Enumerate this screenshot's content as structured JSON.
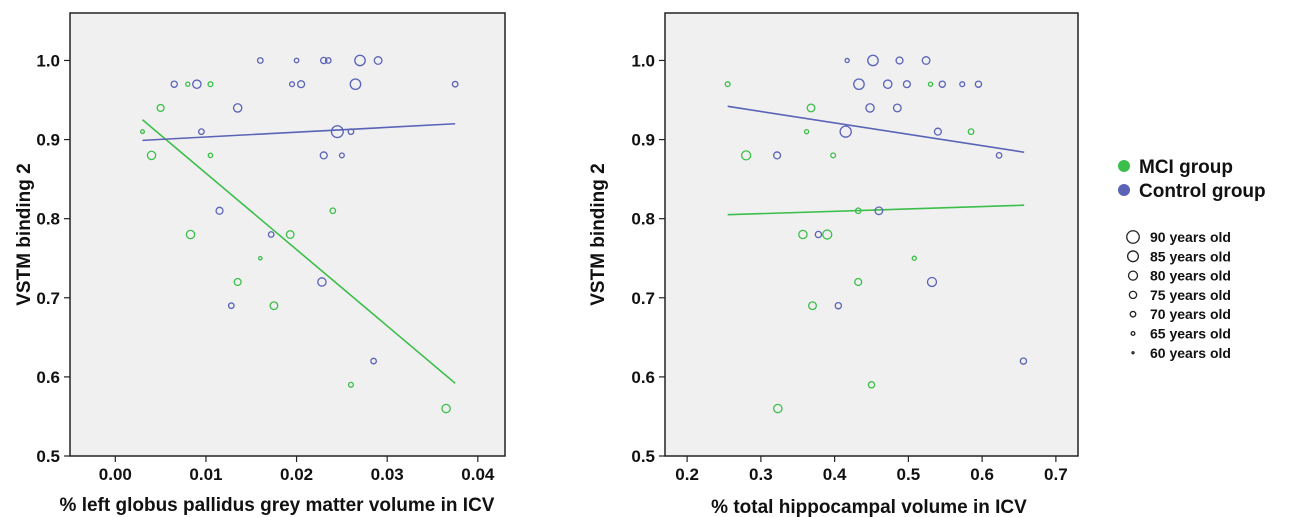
{
  "colors": {
    "mci": "#3cbf4a",
    "control": "#5a63b8",
    "panel_bg": "#f0f0f0"
  },
  "legend": {
    "groups": [
      {
        "label": "MCI group",
        "color": "#3cbf4a"
      },
      {
        "label": "Control group",
        "color": "#5a63b8"
      }
    ],
    "sizes": [
      {
        "label": "90 years old",
        "age": 90
      },
      {
        "label": "85 years old",
        "age": 85
      },
      {
        "label": "80 years old",
        "age": 80
      },
      {
        "label": "75 years old",
        "age": 75
      },
      {
        "label": "70 years old",
        "age": 70
      },
      {
        "label": "65 years old",
        "age": 65
      },
      {
        "label": "60 years old",
        "age": 60
      }
    ]
  },
  "chart_data": [
    {
      "type": "scatter",
      "xlabel": "% left globus pallidus grey matter volume in ICV",
      "ylabel": "VSTM binding 2",
      "xlim": [
        -0.005,
        0.043
      ],
      "ylim": [
        0.5,
        1.06
      ],
      "xticks": [
        "0.00",
        "0.01",
        "0.02",
        "0.03",
        "0.04"
      ],
      "yticks": [
        "0.5",
        "0.6",
        "0.7",
        "0.8",
        "0.9",
        "1.0"
      ],
      "series": [
        {
          "name": "MCI group",
          "points": [
            {
              "x": 0.003,
              "y": 0.91,
              "age": 65
            },
            {
              "x": 0.004,
              "y": 0.88,
              "age": 78
            },
            {
              "x": 0.005,
              "y": 0.94,
              "age": 74
            },
            {
              "x": 0.008,
              "y": 0.97,
              "age": 66
            },
            {
              "x": 0.0105,
              "y": 0.97,
              "age": 68
            },
            {
              "x": 0.0105,
              "y": 0.88,
              "age": 67
            },
            {
              "x": 0.0083,
              "y": 0.78,
              "age": 78
            },
            {
              "x": 0.0135,
              "y": 0.72,
              "age": 74
            },
            {
              "x": 0.016,
              "y": 0.75,
              "age": 64
            },
            {
              "x": 0.0175,
              "y": 0.69,
              "age": 76
            },
            {
              "x": 0.0193,
              "y": 0.78,
              "age": 76
            },
            {
              "x": 0.024,
              "y": 0.81,
              "age": 70
            },
            {
              "x": 0.026,
              "y": 0.59,
              "age": 68
            },
            {
              "x": 0.0365,
              "y": 0.56,
              "age": 78
            }
          ],
          "fit": [
            [
              0.003,
              0.925
            ],
            [
              0.0375,
              0.592
            ]
          ]
        },
        {
          "name": "Control group",
          "points": [
            {
              "x": 0.0065,
              "y": 0.97,
              "age": 72
            },
            {
              "x": 0.009,
              "y": 0.97,
              "age": 78
            },
            {
              "x": 0.0095,
              "y": 0.91,
              "age": 70
            },
            {
              "x": 0.0135,
              "y": 0.94,
              "age": 78
            },
            {
              "x": 0.016,
              "y": 1.0,
              "age": 70
            },
            {
              "x": 0.0195,
              "y": 0.97,
              "age": 68
            },
            {
              "x": 0.0205,
              "y": 0.97,
              "age": 74
            },
            {
              "x": 0.02,
              "y": 1.0,
              "age": 67
            },
            {
              "x": 0.023,
              "y": 1.0,
              "age": 72
            },
            {
              "x": 0.0235,
              "y": 1.0,
              "age": 70
            },
            {
              "x": 0.027,
              "y": 1.0,
              "age": 84
            },
            {
              "x": 0.0265,
              "y": 0.97,
              "age": 84
            },
            {
              "x": 0.029,
              "y": 1.0,
              "age": 76
            },
            {
              "x": 0.0375,
              "y": 0.97,
              "age": 70
            },
            {
              "x": 0.0245,
              "y": 0.91,
              "age": 88
            },
            {
              "x": 0.026,
              "y": 0.91,
              "age": 70
            },
            {
              "x": 0.023,
              "y": 0.88,
              "age": 74
            },
            {
              "x": 0.025,
              "y": 0.88,
              "age": 68
            },
            {
              "x": 0.0115,
              "y": 0.81,
              "age": 74
            },
            {
              "x": 0.0172,
              "y": 0.78,
              "age": 70
            },
            {
              "x": 0.0128,
              "y": 0.69,
              "age": 70
            },
            {
              "x": 0.0228,
              "y": 0.72,
              "age": 78
            },
            {
              "x": 0.0285,
              "y": 0.62,
              "age": 70
            }
          ],
          "fit": [
            [
              0.003,
              0.899
            ],
            [
              0.0375,
              0.92
            ]
          ]
        }
      ]
    },
    {
      "type": "scatter",
      "xlabel": "% total hippocampal volume in ICV",
      "ylabel": "VSTM binding 2",
      "xlim": [
        0.17,
        0.73
      ],
      "ylim": [
        0.5,
        1.06
      ],
      "xticks": [
        "0.2",
        "0.3",
        "0.4",
        "0.5",
        "0.6",
        "0.7"
      ],
      "yticks": [
        "0.5",
        "0.6",
        "0.7",
        "0.8",
        "0.9",
        "1.0"
      ],
      "series": [
        {
          "name": "MCI group",
          "points": [
            {
              "x": 0.255,
              "y": 0.97,
              "age": 68
            },
            {
              "x": 0.28,
              "y": 0.88,
              "age": 80
            },
            {
              "x": 0.362,
              "y": 0.91,
              "age": 66
            },
            {
              "x": 0.368,
              "y": 0.94,
              "age": 76
            },
            {
              "x": 0.398,
              "y": 0.88,
              "age": 68
            },
            {
              "x": 0.357,
              "y": 0.78,
              "age": 78
            },
            {
              "x": 0.37,
              "y": 0.69,
              "age": 76
            },
            {
              "x": 0.39,
              "y": 0.78,
              "age": 80
            },
            {
              "x": 0.432,
              "y": 0.81,
              "age": 70
            },
            {
              "x": 0.432,
              "y": 0.72,
              "age": 74
            },
            {
              "x": 0.45,
              "y": 0.59,
              "age": 72
            },
            {
              "x": 0.508,
              "y": 0.75,
              "age": 66
            },
            {
              "x": 0.53,
              "y": 0.97,
              "age": 66
            },
            {
              "x": 0.585,
              "y": 0.91,
              "age": 70
            },
            {
              "x": 0.323,
              "y": 0.56,
              "age": 78
            }
          ],
          "fit": [
            [
              0.255,
              0.805
            ],
            [
              0.657,
              0.817
            ]
          ]
        },
        {
          "name": "Control group",
          "points": [
            {
              "x": 0.322,
              "y": 0.88,
              "age": 74
            },
            {
              "x": 0.378,
              "y": 0.78,
              "age": 72
            },
            {
              "x": 0.405,
              "y": 0.69,
              "age": 72
            },
            {
              "x": 0.415,
              "y": 0.91,
              "age": 86
            },
            {
              "x": 0.417,
              "y": 1.0,
              "age": 66
            },
            {
              "x": 0.433,
              "y": 0.97,
              "age": 84
            },
            {
              "x": 0.448,
              "y": 0.94,
              "age": 78
            },
            {
              "x": 0.452,
              "y": 1.0,
              "age": 84
            },
            {
              "x": 0.46,
              "y": 0.81,
              "age": 76
            },
            {
              "x": 0.472,
              "y": 0.97,
              "age": 78
            },
            {
              "x": 0.485,
              "y": 0.94,
              "age": 76
            },
            {
              "x": 0.488,
              "y": 1.0,
              "age": 74
            },
            {
              "x": 0.498,
              "y": 0.97,
              "age": 74
            },
            {
              "x": 0.524,
              "y": 1.0,
              "age": 76
            },
            {
              "x": 0.532,
              "y": 0.72,
              "age": 80
            },
            {
              "x": 0.54,
              "y": 0.91,
              "age": 74
            },
            {
              "x": 0.546,
              "y": 0.97,
              "age": 72
            },
            {
              "x": 0.573,
              "y": 0.97,
              "age": 68
            },
            {
              "x": 0.595,
              "y": 0.97,
              "age": 72
            },
            {
              "x": 0.623,
              "y": 0.88,
              "age": 70
            },
            {
              "x": 0.656,
              "y": 0.62,
              "age": 72
            }
          ],
          "fit": [
            [
              0.255,
              0.942
            ],
            [
              0.657,
              0.884
            ]
          ]
        }
      ]
    }
  ]
}
